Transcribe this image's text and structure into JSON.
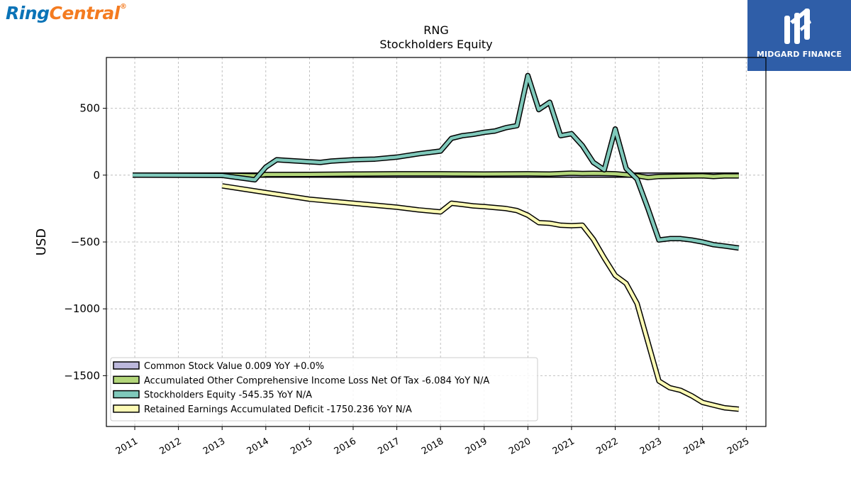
{
  "brand": {
    "logo_part1": "Ring",
    "logo_part2": "Central",
    "logo_reg": "®"
  },
  "watermark": {
    "text": "MIDGARD FINANCE",
    "color": "#2f5ea8"
  },
  "chart_data": {
    "type": "line",
    "title": "RNG",
    "subtitle": "Stockholders  Equity",
    "ylabel": "USD",
    "xlabel": "",
    "xlim": [
      2010.35,
      2025.45
    ],
    "ylim": [
      -1880,
      880
    ],
    "grid": true,
    "legend_position": "lower-left",
    "x_ticks": [
      2011,
      2012,
      2013,
      2014,
      2015,
      2016,
      2017,
      2018,
      2019,
      2020,
      2021,
      2022,
      2023,
      2024,
      2025
    ],
    "y_ticks": [
      500,
      0,
      -500,
      -1000,
      -1500
    ],
    "y_tick_labels": [
      "500",
      "0",
      "−500",
      "−1000",
      "−1500"
    ],
    "series": [
      {
        "name": "Common Stock Value  0.009 YoY +0.0%",
        "color": "#bcb8dc",
        "points": [
          [
            2010.95,
            0
          ],
          [
            2013.0,
            0
          ],
          [
            2016.0,
            0
          ],
          [
            2019.0,
            0
          ],
          [
            2022.0,
            0
          ],
          [
            2024.83,
            0.009
          ]
        ]
      },
      {
        "name": "Accumulated Other Comprehensive Income Loss Net Of Tax  -6.084 YoY N/A",
        "color": "#b3d67a",
        "points": [
          [
            2010.95,
            0
          ],
          [
            2013.0,
            0
          ],
          [
            2013.75,
            -5
          ],
          [
            2014.0,
            5
          ],
          [
            2015.0,
            6
          ],
          [
            2016.0,
            8
          ],
          [
            2017.0,
            10
          ],
          [
            2018.0,
            10
          ],
          [
            2019.0,
            8
          ],
          [
            2020.0,
            10
          ],
          [
            2020.5,
            8
          ],
          [
            2021.0,
            15
          ],
          [
            2021.25,
            12
          ],
          [
            2021.5,
            13
          ],
          [
            2021.75,
            12
          ],
          [
            2022.0,
            10
          ],
          [
            2022.5,
            -5
          ],
          [
            2022.75,
            -18
          ],
          [
            2023.0,
            -10
          ],
          [
            2023.5,
            -8
          ],
          [
            2024.0,
            -5
          ],
          [
            2024.25,
            -10
          ],
          [
            2024.5,
            -6
          ],
          [
            2024.83,
            -6.084
          ]
        ]
      },
      {
        "name": "Stockholders Equity  -545.35 YoY N/A",
        "color": "#7fc9bb",
        "points": [
          [
            2010.95,
            0
          ],
          [
            2013.0,
            -2
          ],
          [
            2013.75,
            -35
          ],
          [
            2014.0,
            60
          ],
          [
            2014.25,
            115
          ],
          [
            2014.5,
            110
          ],
          [
            2015.0,
            100
          ],
          [
            2015.25,
            95
          ],
          [
            2015.5,
            105
          ],
          [
            2016.0,
            115
          ],
          [
            2016.5,
            120
          ],
          [
            2017.0,
            135
          ],
          [
            2017.5,
            160
          ],
          [
            2018.0,
            180
          ],
          [
            2018.25,
            275
          ],
          [
            2018.5,
            295
          ],
          [
            2018.75,
            305
          ],
          [
            2019.0,
            320
          ],
          [
            2019.25,
            330
          ],
          [
            2019.5,
            355
          ],
          [
            2019.75,
            370
          ],
          [
            2020.0,
            745
          ],
          [
            2020.25,
            490
          ],
          [
            2020.5,
            545
          ],
          [
            2020.75,
            295
          ],
          [
            2021.0,
            310
          ],
          [
            2021.25,
            220
          ],
          [
            2021.5,
            95
          ],
          [
            2021.75,
            40
          ],
          [
            2022.0,
            345
          ],
          [
            2022.25,
            50
          ],
          [
            2022.5,
            -30
          ],
          [
            2022.75,
            -250
          ],
          [
            2023.0,
            -485
          ],
          [
            2023.25,
            -475
          ],
          [
            2023.5,
            -475
          ],
          [
            2023.75,
            -485
          ],
          [
            2024.0,
            -500
          ],
          [
            2024.25,
            -520
          ],
          [
            2024.5,
            -530
          ],
          [
            2024.83,
            -545.35
          ]
        ]
      },
      {
        "name": "Retained Earnings Accumulated Deficit  -1750.236 YoY N/A",
        "color": "#fdfbb5",
        "points": [
          [
            2013.0,
            -80
          ],
          [
            2014.0,
            -130
          ],
          [
            2015.0,
            -180
          ],
          [
            2016.0,
            -210
          ],
          [
            2017.0,
            -240
          ],
          [
            2017.5,
            -260
          ],
          [
            2018.0,
            -275
          ],
          [
            2018.25,
            -210
          ],
          [
            2018.5,
            -220
          ],
          [
            2018.75,
            -230
          ],
          [
            2019.0,
            -235
          ],
          [
            2019.5,
            -250
          ],
          [
            2019.75,
            -265
          ],
          [
            2020.0,
            -300
          ],
          [
            2020.25,
            -355
          ],
          [
            2020.5,
            -360
          ],
          [
            2020.75,
            -375
          ],
          [
            2021.0,
            -378
          ],
          [
            2021.25,
            -375
          ],
          [
            2021.5,
            -480
          ],
          [
            2021.75,
            -620
          ],
          [
            2022.0,
            -750
          ],
          [
            2022.25,
            -810
          ],
          [
            2022.5,
            -960
          ],
          [
            2022.75,
            -1250
          ],
          [
            2023.0,
            -1540
          ],
          [
            2023.25,
            -1590
          ],
          [
            2023.5,
            -1610
          ],
          [
            2023.75,
            -1650
          ],
          [
            2024.0,
            -1700
          ],
          [
            2024.25,
            -1720
          ],
          [
            2024.5,
            -1740
          ],
          [
            2024.83,
            -1750.236
          ]
        ]
      }
    ],
    "legend_order": [
      0,
      1,
      2,
      3
    ]
  }
}
